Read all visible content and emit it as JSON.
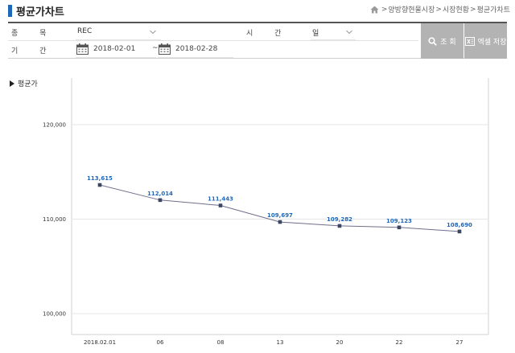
{
  "header": {
    "title": "평균가차트",
    "breadcrumb": [
      "양방향현물시장",
      "시장현황",
      "평균가차트"
    ],
    "breadcrumb_sep": ">"
  },
  "form": {
    "item_label": "종  목",
    "item_value": "REC",
    "period_label": "시  간",
    "period_value": "일",
    "range_label": "기  간",
    "date_from": "2018-02-01",
    "date_sep": "~",
    "date_to": "2018-02-28"
  },
  "buttons": {
    "search_label": "조 회",
    "excel_label": "엑셀 저장"
  },
  "colors": {
    "accent": "#1f67b8",
    "button_bg": "#b3b3b3",
    "line": "#6e6e8a",
    "value_label": "#1f67b8"
  },
  "chart_data": {
    "type": "line",
    "title": "평균가",
    "categories": [
      "2018.02.01",
      "06",
      "08",
      "13",
      "20",
      "22",
      "27"
    ],
    "series": [
      {
        "values": [
          113615,
          112014,
          111443,
          109697,
          109282,
          109123,
          108690
        ]
      }
    ],
    "value_labels": [
      "113,615",
      "112,014",
      "111,443",
      "109,697",
      "109,282",
      "109,123",
      "108,690"
    ],
    "yticks": [
      100000,
      110000,
      120000
    ],
    "ytick_labels": [
      "100,000",
      "110,000",
      "120,000"
    ],
    "ylim": [
      100000,
      120000
    ],
    "grid": true,
    "legend": "none"
  }
}
